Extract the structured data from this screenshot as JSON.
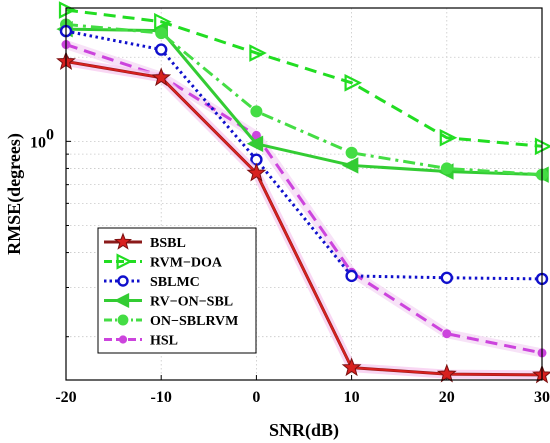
{
  "chart_data": {
    "type": "line",
    "xlabel": "SNR(dB)",
    "ylabel": "RMSE(degrees)",
    "x": [
      -20,
      -10,
      0,
      10,
      20,
      30
    ],
    "x_ticks": [
      "-20",
      "-10",
      "0",
      "10",
      "20",
      "30"
    ],
    "xlim": [
      -20,
      30
    ],
    "y_scale": "log",
    "ylim": [
      0.14,
      3.0
    ],
    "y_ticks": [
      {
        "value": 1.0,
        "label": "10",
        "exp": "0"
      }
    ],
    "grid": true,
    "legend_position": "bottom-left",
    "series": [
      {
        "name": "BSBL",
        "color": "#d8201e",
        "line": "solid",
        "marker": "star",
        "values": [
          1.93,
          1.69,
          0.77,
          0.155,
          0.147,
          0.146
        ]
      },
      {
        "name": "RVM−DOA",
        "color": "#22dd22",
        "line": "dashed",
        "marker": "triangle-right",
        "values": [
          2.95,
          2.68,
          2.07,
          1.62,
          1.03,
          0.96
        ]
      },
      {
        "name": "SBLMC",
        "color": "#1010cc",
        "line": "dotted",
        "marker": "circle",
        "values": [
          2.48,
          2.13,
          0.86,
          0.33,
          0.325,
          0.322
        ]
      },
      {
        "name": "RV−ON−SBL",
        "color": "#33cc33",
        "line": "solid",
        "marker": "triangle-left",
        "values": [
          2.52,
          2.49,
          0.98,
          0.82,
          0.78,
          0.76
        ]
      },
      {
        "name": "ON−SBLRVM",
        "color": "#44dd44",
        "line": "dashdot",
        "marker": "circle-filled",
        "values": [
          2.62,
          2.44,
          1.28,
          0.91,
          0.8,
          0.76
        ]
      },
      {
        "name": "HSL",
        "color": "#cc44dd",
        "line": "dashed",
        "marker": "dot",
        "values": [
          2.22,
          1.71,
          1.05,
          0.34,
          0.205,
          0.175
        ]
      }
    ]
  }
}
